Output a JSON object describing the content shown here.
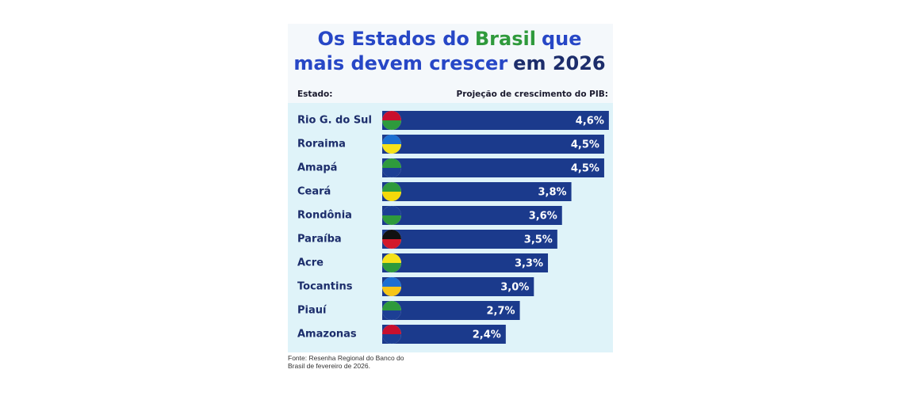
{
  "chart_data": {
    "type": "bar",
    "orientation": "horizontal",
    "title": [
      {
        "text": "Os Estados do",
        "color": "#2747c6"
      },
      {
        "text": "Brasil",
        "color": "#2f9a3c"
      },
      {
        "text": "que",
        "color": "#2747c6"
      },
      {
        "text": "mais devem crescer",
        "color": "#2747c6"
      },
      {
        "text": "em 2026",
        "color": "#1c2d6b"
      }
    ],
    "category_header": "Estado:",
    "value_header": "Projeção de crescimento do PIB:",
    "categories": [
      "Rio G. do Sul",
      "Roraima",
      "Amapá",
      "Ceará",
      "Rondônia",
      "Paraíba",
      "Acre",
      "Tocantins",
      "Piauí",
      "Amazonas"
    ],
    "values": [
      4.6,
      4.5,
      4.5,
      3.8,
      3.6,
      3.5,
      3.3,
      3.0,
      2.7,
      2.4
    ],
    "value_labels": [
      "4,6%",
      "4,5%",
      "4,5%",
      "3,8%",
      "3,6%",
      "3,5%",
      "3,3%",
      "3,0%",
      "2,7%",
      "2,4%"
    ],
    "color": "#1b3a8c",
    "source": "Fonte: Resenha Regional do Banco do Brasil de fevereiro de 2026."
  }
}
